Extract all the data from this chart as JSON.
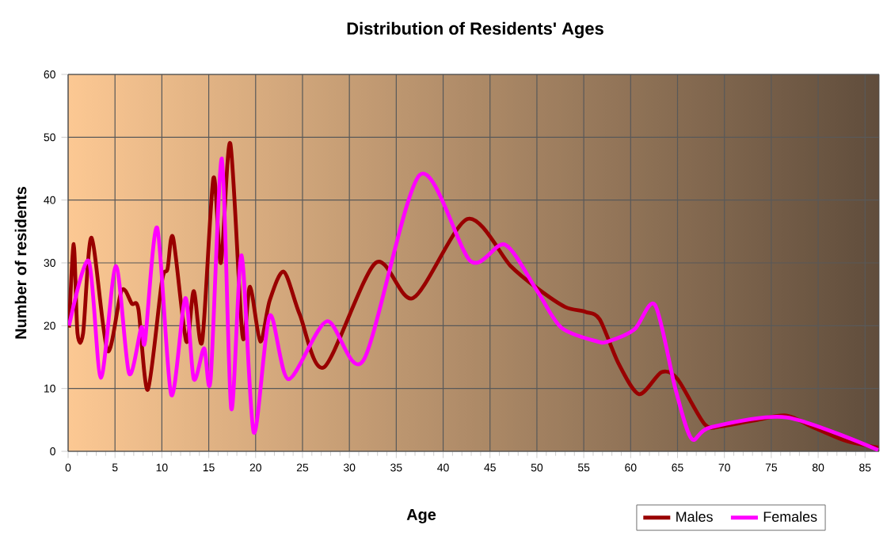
{
  "chart_data": {
    "type": "line",
    "title": "Distribution of Residents' Ages",
    "xlabel": "Age",
    "ylabel": "Number of residents",
    "xlim": [
      0,
      86.5
    ],
    "xticks": [
      0,
      5,
      10,
      15,
      20,
      25,
      30,
      35,
      40,
      45,
      50,
      55,
      60,
      65,
      70,
      75,
      80,
      85
    ],
    "ylim": [
      0,
      60
    ],
    "yticks": [
      0,
      10,
      20,
      30,
      40,
      50,
      60
    ],
    "grid": true,
    "legend": "bottom right",
    "marker": "none",
    "line_style": "solid",
    "series": [
      {
        "name": "Males",
        "color": "#990000",
        "x": [
          0.1,
          0.6,
          1,
          1.6,
          2.5,
          4.2,
          5.7,
          6.8,
          7.5,
          8.5,
          10,
          10.6,
          11.2,
          12.6,
          13.4,
          14.3,
          15.5,
          16.3,
          17.3,
          18.6,
          19.4,
          20.5,
          21.5,
          23,
          24.7,
          27.3,
          32.8,
          36.8,
          42.6,
          47.2,
          50,
          53,
          55.2,
          56.7,
          58.7,
          60.9,
          63.3,
          65,
          67.9,
          69.7,
          73.1,
          76.6,
          79.5,
          82.9,
          86.4
        ],
        "values": [
          19.7,
          33,
          18.8,
          18.8,
          34,
          16,
          25.6,
          23.5,
          22.6,
          9.8,
          27,
          29,
          34,
          17.5,
          25.5,
          17.5,
          43.5,
          30,
          49,
          18.4,
          26.2,
          17.5,
          24,
          28.6,
          21.8,
          13.4,
          30,
          24.4,
          37,
          29.5,
          26,
          23,
          22.2,
          21,
          14,
          9.1,
          12.6,
          11.5,
          4.3,
          4,
          4.9,
          5.7,
          3.8,
          1.7,
          0.6
        ]
      },
      {
        "name": "Females",
        "color": "#ff00ff",
        "x": [
          0.1,
          2.2,
          3.5,
          5.1,
          6.5,
          7.8,
          8.2,
          9.5,
          11,
          12.5,
          13.4,
          14.5,
          15.2,
          16.4,
          17.4,
          18.5,
          19.8,
          21.5,
          23.5,
          27.6,
          31.5,
          37.5,
          42.9,
          46.6,
          50,
          52.6,
          56.4,
          57.6,
          60.4,
          62.6,
          64.8,
          66.5,
          68.5,
          76.6,
          86.4
        ],
        "values": [
          20,
          30.3,
          11.7,
          29.5,
          12.4,
          19.7,
          17.5,
          35.6,
          9,
          24.4,
          11.5,
          16.4,
          11.5,
          46.6,
          6.8,
          31.2,
          3,
          21.6,
          11.5,
          20.7,
          14.5,
          44,
          30.3,
          32.9,
          25.6,
          19.7,
          17.5,
          17.5,
          19.4,
          23.3,
          9.8,
          2,
          3.8,
          5.4,
          0.2
        ]
      }
    ]
  }
}
